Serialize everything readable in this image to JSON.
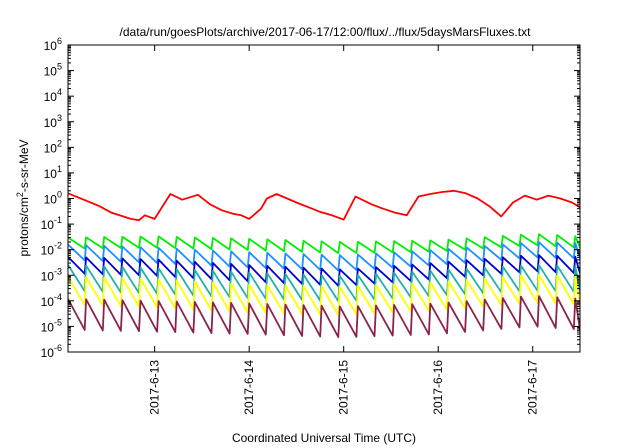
{
  "chart_data": {
    "type": "line",
    "title": "/data/run/goesPlots/archive/2017-06-17/12:00/flux/../flux/5daysMarsFluxes.txt",
    "xlabel": "Coordinated Universal Time (UTC)",
    "ylabel": "protons/cm2-s-sr-MeV",
    "y_scale": "log",
    "ylim": [
      1e-06,
      1000000.0
    ],
    "x_range": [
      "2017-06-12T02:00",
      "2017-06-17T12:00"
    ],
    "y_ticks": [
      "10^-6",
      "10^-5",
      "10^-4",
      "10^-3",
      "10^-2",
      "10^-1",
      "10^0",
      "10^1",
      "10^2",
      "10^3",
      "10^4",
      "10^5",
      "10^6"
    ],
    "x_ticks": [
      {
        "x": "2017-06-13T00:00",
        "label": "2017-6-13"
      },
      {
        "x": "2017-06-14T00:00",
        "label": "2017-6-14"
      },
      {
        "x": "2017-06-15T00:00",
        "label": "2017-6-15"
      },
      {
        "x": "2017-06-16T00:00",
        "label": "2017-6-16"
      },
      {
        "x": "2017-06-17T00:00",
        "label": "2017-6-17"
      }
    ],
    "grid": false,
    "series": [
      {
        "color": "#ff0000",
        "x": [
          "2017-06-12T02:00",
          "2017-06-12T06:00",
          "2017-06-12T10:00",
          "2017-06-12T13:00",
          "2017-06-12T16:00",
          "2017-06-12T18:00",
          "2017-06-12T20:00",
          "2017-06-12T21:30",
          "2017-06-13T00:00",
          "2017-06-13T04:00",
          "2017-06-13T07:00",
          "2017-06-13T11:00",
          "2017-06-13T14:00",
          "2017-06-13T17:00",
          "2017-06-13T20:00",
          "2017-06-13T22:00",
          "2017-06-14T00:00",
          "2017-06-14T03:00",
          "2017-06-14T04:30",
          "2017-06-14T07:00",
          "2017-06-14T12:00",
          "2017-06-14T16:00",
          "2017-06-14T18:00",
          "2017-06-14T21:00",
          "2017-06-15T00:00",
          "2017-06-15T03:00",
          "2017-06-15T07:00",
          "2017-06-15T10:00",
          "2017-06-15T13:00",
          "2017-06-15T16:00",
          "2017-06-15T19:00",
          "2017-06-15T22:00",
          "2017-06-16T01:00",
          "2017-06-16T04:00",
          "2017-06-16T07:00",
          "2017-06-16T10:00",
          "2017-06-16T13:00",
          "2017-06-16T16:00",
          "2017-06-16T19:00",
          "2017-06-16T22:00",
          "2017-06-17T01:00",
          "2017-06-17T04:00",
          "2017-06-17T07:00",
          "2017-06-17T10:00",
          "2017-06-17T12:00"
        ],
        "values": [
          1.6,
          0.9,
          0.5,
          0.28,
          0.2,
          0.16,
          0.14,
          0.22,
          0.16,
          1.5,
          0.9,
          1.4,
          0.6,
          0.35,
          0.25,
          0.22,
          0.16,
          0.4,
          1.0,
          1.5,
          0.7,
          0.4,
          0.3,
          0.22,
          0.15,
          1.2,
          0.6,
          0.4,
          0.28,
          0.22,
          1.2,
          1.5,
          1.8,
          2.0,
          1.6,
          1.0,
          0.5,
          0.2,
          0.7,
          1.3,
          0.9,
          1.3,
          1.0,
          0.7,
          0.45
        ]
      },
      {
        "color": "#00ee00",
        "x": [
          "2017-06-12T02:00",
          "2017-06-13T00:00",
          "2017-06-14T00:00",
          "2017-06-15T00:00",
          "2017-06-16T00:00",
          "2017-06-17T00:00",
          "2017-06-17T12:00"
        ],
        "values": [
          0.018,
          0.02,
          0.016,
          0.012,
          0.014,
          0.025,
          0.02
        ]
      },
      {
        "color": "#1e90ff",
        "x": [
          "2017-06-12T02:00",
          "2017-06-13T00:00",
          "2017-06-14T00:00",
          "2017-06-15T00:00",
          "2017-06-16T00:00",
          "2017-06-17T00:00",
          "2017-06-17T12:00"
        ],
        "values": [
          0.008,
          0.006,
          0.004,
          0.003,
          0.005,
          0.01,
          0.009
        ]
      },
      {
        "color": "#0000cc",
        "x": [
          "2017-06-12T02:00",
          "2017-06-13T00:00",
          "2017-06-14T00:00",
          "2017-06-15T00:00",
          "2017-06-16T00:00",
          "2017-06-17T00:00",
          "2017-06-17T12:00"
        ],
        "values": [
          0.0025,
          0.002,
          0.0012,
          0.0008,
          0.0015,
          0.003,
          0.0025
        ]
      },
      {
        "color": "#20b2aa",
        "x": [
          "2017-06-12T02:00",
          "2017-06-13T00:00",
          "2017-06-14T00:00",
          "2017-06-15T00:00",
          "2017-06-16T00:00",
          "2017-06-17T00:00",
          "2017-06-17T12:00"
        ],
        "values": [
          0.0008,
          0.0006,
          0.0004,
          0.0003,
          0.0005,
          0.0008,
          0.0007
        ]
      },
      {
        "color": "#ffff00",
        "x": [
          "2017-06-12T02:00",
          "2017-06-13T00:00",
          "2017-06-14T00:00",
          "2017-06-15T00:00",
          "2017-06-16T00:00",
          "2017-06-17T00:00",
          "2017-06-17T12:00"
        ],
        "values": [
          0.00025,
          0.0002,
          0.00012,
          0.0001,
          0.00015,
          0.0003,
          0.00025
        ]
      },
      {
        "color": "#8b2252",
        "x": [
          "2017-06-12T02:00",
          "2017-06-13T00:00",
          "2017-06-14T00:00",
          "2017-06-15T00:00",
          "2017-06-16T00:00",
          "2017-06-17T00:00",
          "2017-06-17T12:00"
        ],
        "values": [
          3e-05,
          2.5e-05,
          2e-05,
          1.5e-05,
          2e-05,
          4e-05,
          3e-05
        ]
      }
    ]
  }
}
